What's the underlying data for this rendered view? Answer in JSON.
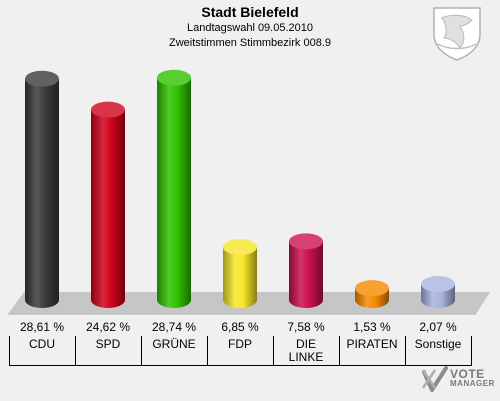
{
  "header": {
    "title": "Stadt Bielefeld",
    "subtitle1": "Landtagswahl 09.05.2010",
    "subtitle2": "Zweitstimmen Stimmbezirk 008.9"
  },
  "logo": {
    "line1": "VOTE",
    "line2": "MANAGER"
  },
  "colors": {
    "background": "#f0f0f0",
    "floor": "#c8c8c8",
    "CDU": "#3a3a3a",
    "SPD": "#d0021b",
    "GRUENE": "#2ec200",
    "FDP": "#f5e62a",
    "DIE LINKE": "#cc1050",
    "PIRATEN": "#f58a00",
    "Sonstige": "#a8b4e0"
  },
  "chart_data": {
    "type": "bar",
    "title": "Stadt Bielefeld",
    "subtitle": "Landtagswahl 09.05.2010 — Zweitstimmen Stimmbezirk 008.9",
    "categories": [
      "CDU",
      "SPD",
      "GRÜNE",
      "FDP",
      "DIE\nLINKE",
      "PIRATEN",
      "Sonstige"
    ],
    "values": [
      28.61,
      24.62,
      28.74,
      6.85,
      7.58,
      1.53,
      2.07
    ],
    "value_labels": [
      "28,61 %",
      "24,62 %",
      "28,74 %",
      "6,85 %",
      "7,58 %",
      "1,53 %",
      "2,07 %"
    ],
    "series_colors": [
      "#3a3a3a",
      "#d0021b",
      "#2ec200",
      "#f5e62a",
      "#cc1050",
      "#f58a00",
      "#a8b4e0"
    ],
    "unit": "%",
    "ylim": [
      0,
      30
    ],
    "grid": false,
    "legend": "none"
  }
}
